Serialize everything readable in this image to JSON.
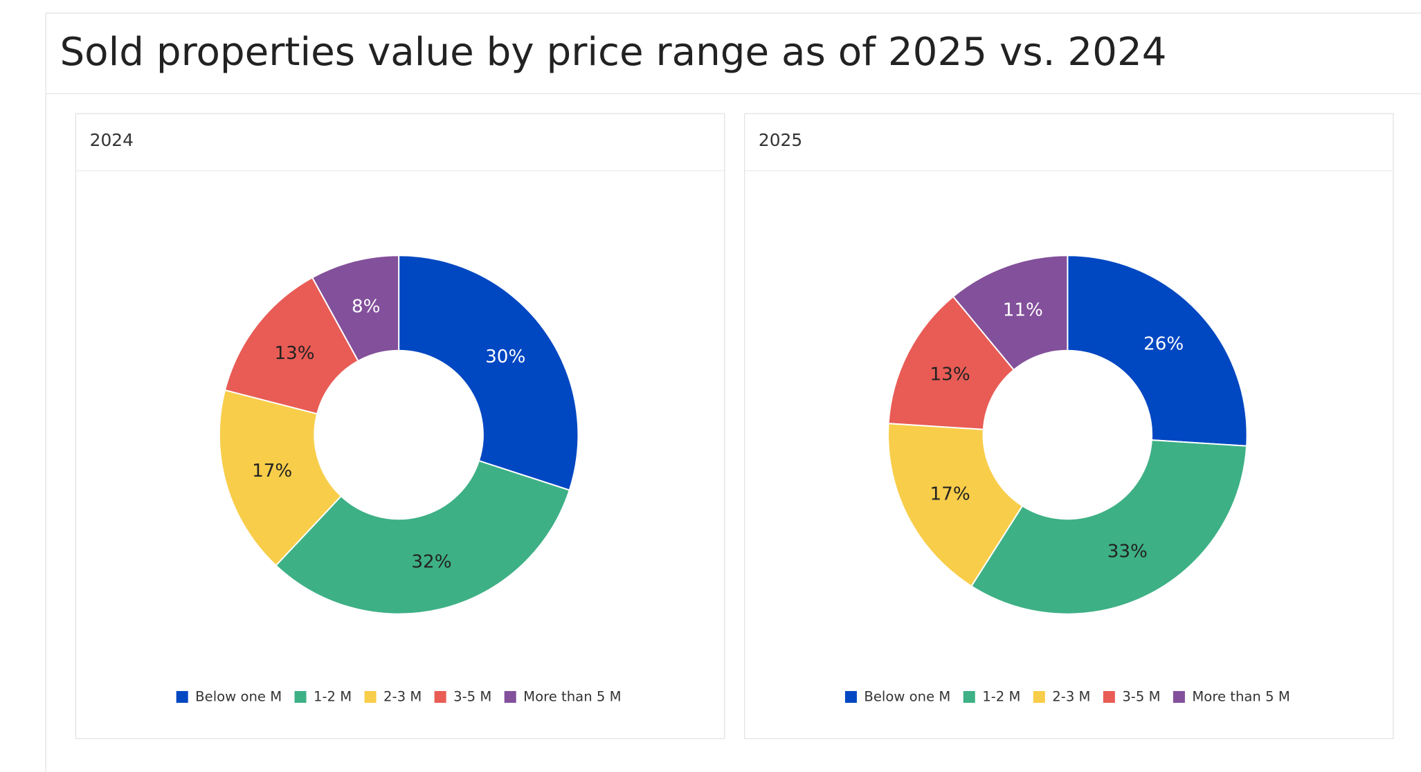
{
  "page_title": "Sold properties value by price range as of 2025 vs. 2024",
  "chart_data": [
    {
      "type": "donut",
      "title": "2024",
      "categories": [
        "Below one M",
        "1-2 M",
        "2-3 M",
        "3-5 M",
        "More than 5 M"
      ],
      "values": [
        30,
        32,
        17,
        13,
        8
      ],
      "value_labels": [
        "30%",
        "32%",
        "17%",
        "13%",
        "8%"
      ],
      "colors": [
        "#0047c2",
        "#3eb086",
        "#f8cd4a",
        "#e85c55",
        "#83509b"
      ],
      "legend": "bottom"
    },
    {
      "type": "donut",
      "title": "2025",
      "categories": [
        "Below one M",
        "1-2 M",
        "2-3 M",
        "3-5 M",
        "More than 5 M"
      ],
      "values": [
        26,
        33,
        17,
        13,
        11
      ],
      "value_labels": [
        "26%",
        "33%",
        "17%",
        "13%",
        "11%"
      ],
      "colors": [
        "#0047c2",
        "#3eb086",
        "#f8cd4a",
        "#e85c55",
        "#83509b"
      ],
      "legend": "bottom"
    }
  ]
}
